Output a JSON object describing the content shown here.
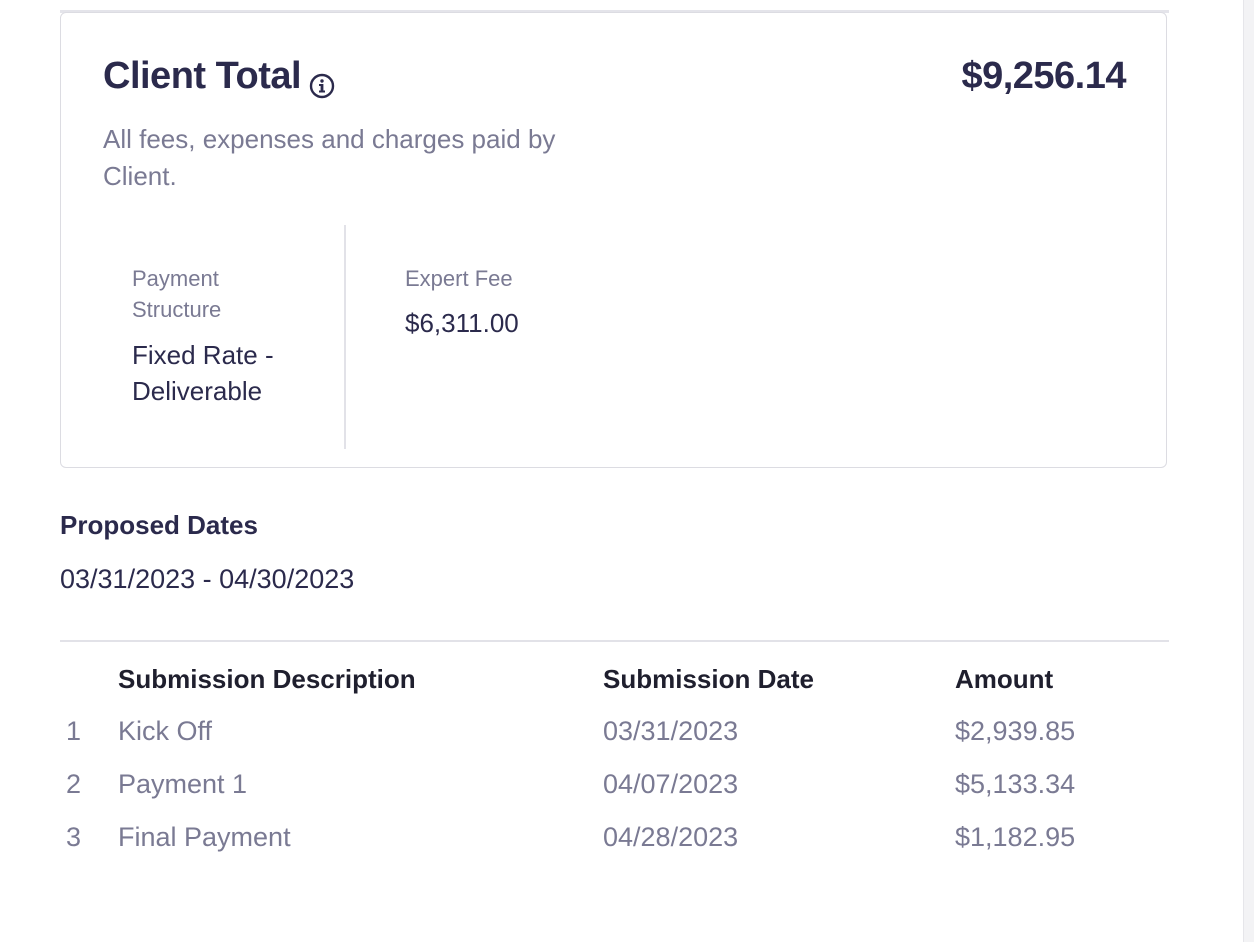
{
  "client_total": {
    "title": "Client Total",
    "amount": "$9,256.14",
    "description": "All fees, expenses and charges paid by Client."
  },
  "payment_structure": {
    "label": "Payment Structure",
    "value": "Fixed Rate - Deliverable"
  },
  "expert_fee": {
    "label": "Expert Fee",
    "value": "$6,311.00"
  },
  "proposed_dates": {
    "heading": "Proposed Dates",
    "value": "03/31/2023 - 04/30/2023"
  },
  "submissions": {
    "headers": {
      "description": "Submission Description",
      "date": "Submission Date",
      "amount": "Amount"
    },
    "rows": [
      {
        "index": "1",
        "description": "Kick Off",
        "date": "03/31/2023",
        "amount": "$2,939.85"
      },
      {
        "index": "2",
        "description": "Payment 1",
        "date": "04/07/2023",
        "amount": "$5,133.34"
      },
      {
        "index": "3",
        "description": "Final Payment",
        "date": "04/28/2023",
        "amount": "$1,182.95"
      }
    ]
  },
  "icons": {
    "info": "info-circle-icon"
  },
  "colors": {
    "heading": "#2b2a4c",
    "muted": "#7a7a93",
    "border": "#dcdce2"
  }
}
